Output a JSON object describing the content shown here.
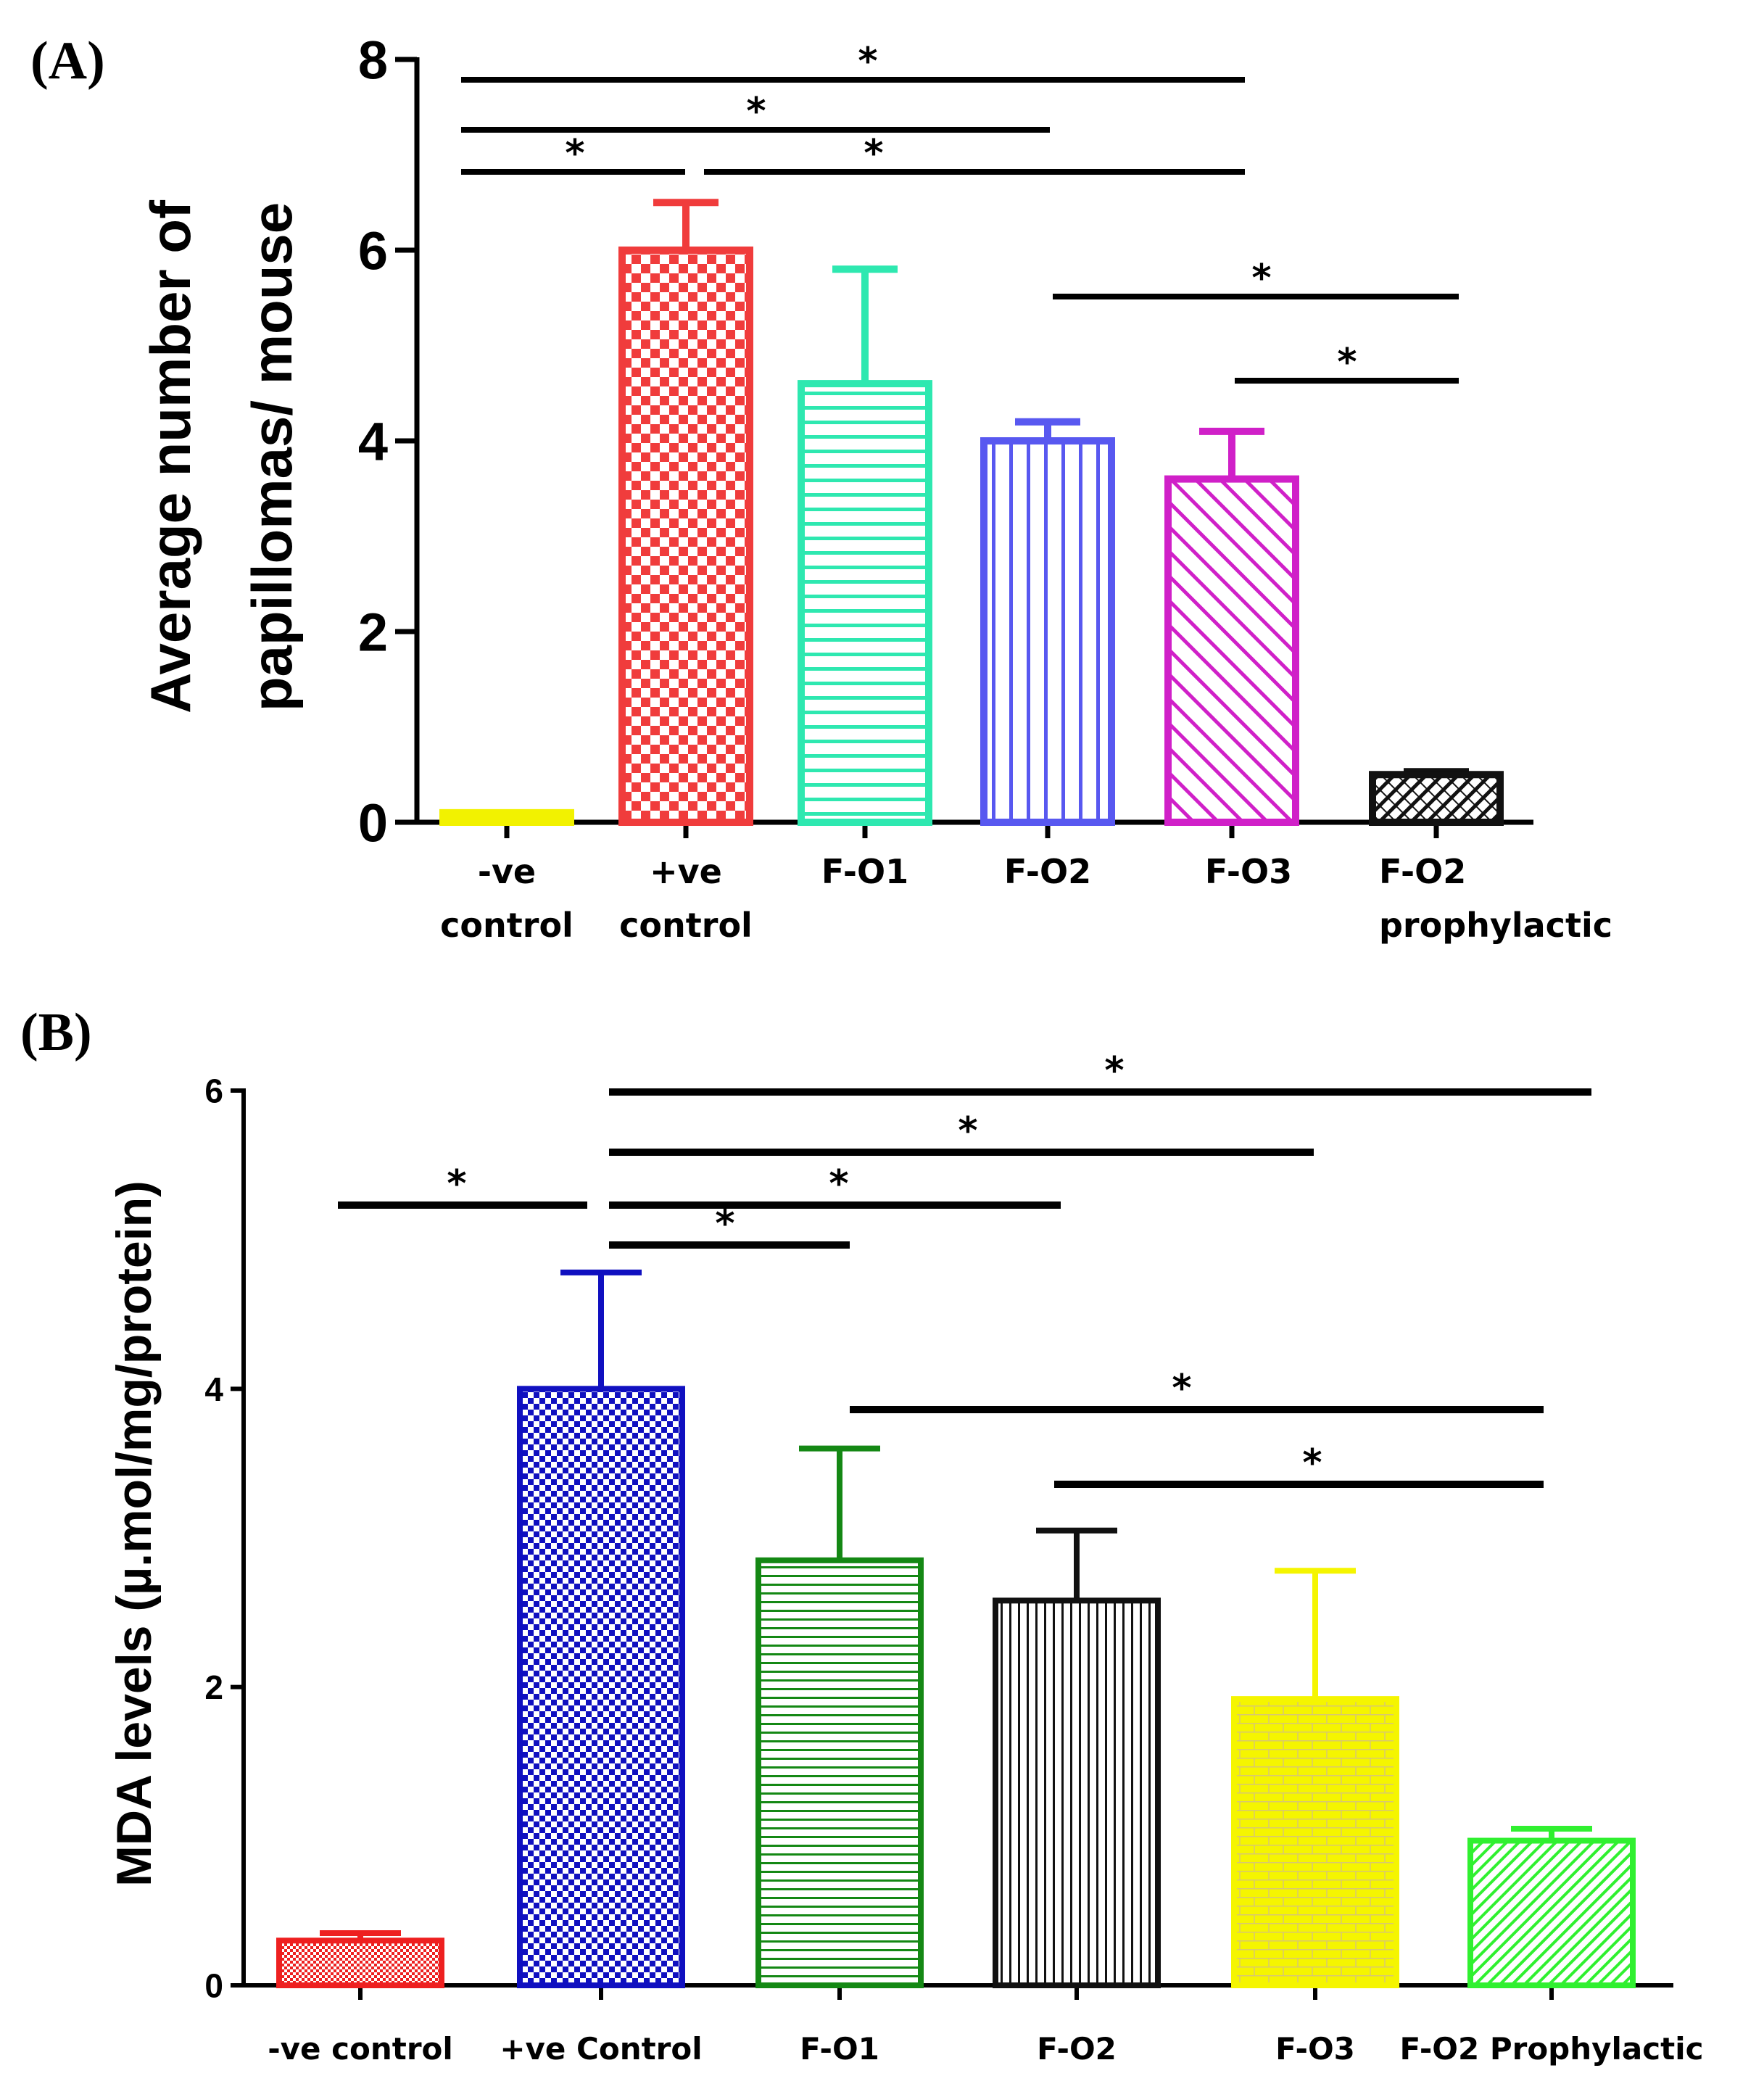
{
  "chart_data": [
    {
      "type": "bar",
      "panel_label": "(A)",
      "ylabel_lines": [
        "Average number of",
        "papillomas/ mouse"
      ],
      "ylim": [
        0,
        8
      ],
      "yticks": [
        "0",
        "2",
        "4",
        "6",
        "8"
      ],
      "categories": [
        {
          "lines": [
            "-ve",
            "control"
          ]
        },
        {
          "lines": [
            "+ve",
            "control"
          ]
        },
        {
          "lines": [
            "F-O1"
          ]
        },
        {
          "lines": [
            "F-O2"
          ]
        },
        {
          "lines": [
            "F-O3"
          ]
        },
        {
          "lines": [
            "F-O2",
            "prophylactic"
          ]
        }
      ],
      "values": [
        0.1,
        6.0,
        4.6,
        4.0,
        3.6,
        0.5
      ],
      "errors": [
        0,
        0.5,
        1.2,
        0.2,
        0.5,
        0.03
      ],
      "colors": [
        "#f2f200",
        "#f03c3c",
        "#2ee8b0",
        "#5858f0",
        "#d020c8",
        "#111111"
      ],
      "patterns": [
        "solid",
        "checker",
        "hlines",
        "vlines",
        "diag",
        "crosshatch"
      ],
      "significance": [
        {
          "from": 0,
          "to": 4,
          "label": "*"
        },
        {
          "from": 0,
          "to": 3,
          "label": "*"
        },
        {
          "from": 0,
          "to": 1,
          "label": "*"
        },
        {
          "from": 1,
          "to": 4,
          "label": "*"
        },
        {
          "from": 3,
          "to": 5,
          "label": "*"
        },
        {
          "from": 4,
          "to": 5,
          "label": "*"
        }
      ]
    },
    {
      "type": "bar",
      "panel_label": "(B)",
      "ylabel": "MDA levels (µ.mol/mg/protein)",
      "ylim": [
        0,
        6
      ],
      "yticks": [
        "0",
        "2",
        "4",
        "6"
      ],
      "categories": [
        "-ve control",
        "+ve Control",
        "F-O1",
        "F-O2",
        "F-O3",
        "F-O2 Prophylactic"
      ],
      "values": [
        0.3,
        4.0,
        2.85,
        2.58,
        1.92,
        0.97
      ],
      "errors": [
        0.05,
        0.78,
        0.75,
        0.47,
        0.86,
        0.08
      ],
      "colors": [
        "#ee2020",
        "#1010c0",
        "#148814",
        "#111111",
        "#f5f500",
        "#30f030"
      ],
      "patterns": [
        "dots",
        "checker",
        "hlines",
        "vlines",
        "brick",
        "diag"
      ],
      "significance": [
        {
          "from": 1,
          "to": 5,
          "label": "*"
        },
        {
          "from": 1,
          "to": 4,
          "label": "*"
        },
        {
          "from": 0,
          "to": 1,
          "label": "*"
        },
        {
          "from": 1,
          "to": 3,
          "label": "*"
        },
        {
          "from": 1,
          "to": 2,
          "label": "*"
        },
        {
          "from": 2,
          "to": 5,
          "label": "*"
        },
        {
          "from": 3,
          "to": 5,
          "label": "*"
        }
      ]
    }
  ]
}
